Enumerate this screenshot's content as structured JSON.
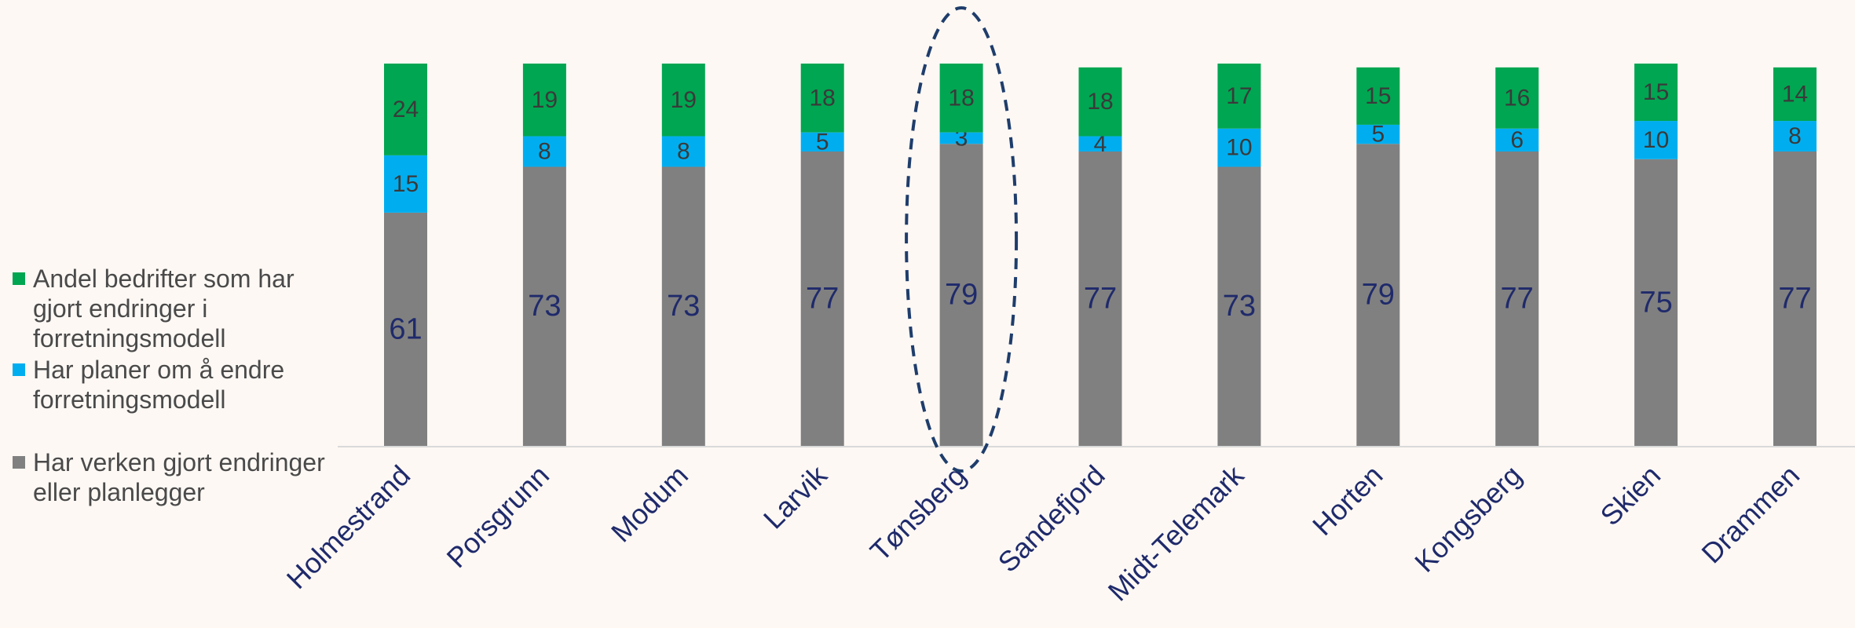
{
  "chart_data": {
    "type": "bar",
    "stacked": true,
    "categories": [
      "Holmestrand",
      "Porsgrunn",
      "Modum",
      "Larvik",
      "Tønsberg",
      "Sandefjord",
      "Midt-Telemark",
      "Horten",
      "Kongsberg",
      "Skien",
      "Drammen"
    ],
    "series": [
      {
        "name": "Har verken gjort endringer eller planlegger",
        "color": "#808080",
        "values": [
          61,
          73,
          73,
          77,
          79,
          77,
          73,
          79,
          77,
          75,
          77
        ]
      },
      {
        "name": "Har planer om å endre forretningsmodell",
        "color": "#00AEEF",
        "values": [
          15,
          8,
          8,
          5,
          3,
          4,
          10,
          5,
          6,
          10,
          8
        ]
      },
      {
        "name": "Andel bedrifter som har gjort endringer i forretningsmodell",
        "color": "#00A651",
        "values": [
          24,
          19,
          19,
          18,
          18,
          18,
          17,
          15,
          16,
          15,
          14
        ]
      }
    ],
    "ylim": [
      0,
      100
    ],
    "highlight": "Tønsberg",
    "legend_position": "left",
    "grid": false
  },
  "colors": {
    "background": "#FDF8F4",
    "base_label": "#1F2A6B",
    "segment_label": "#3a3a3a",
    "category_label": "#1F2A6B",
    "highlight_outline": "#1F3D6B",
    "axis": "#d9d9d9"
  },
  "legend": [
    {
      "label": "Andel bedrifter som har gjort endringer i forretningsmodell",
      "color": "#00A651"
    },
    {
      "label": "Har planer om å endre forretningsmodell",
      "color": "#00AEEF"
    },
    {
      "label": "Har verken gjort endringer eller planlegger",
      "color": "#808080"
    }
  ]
}
